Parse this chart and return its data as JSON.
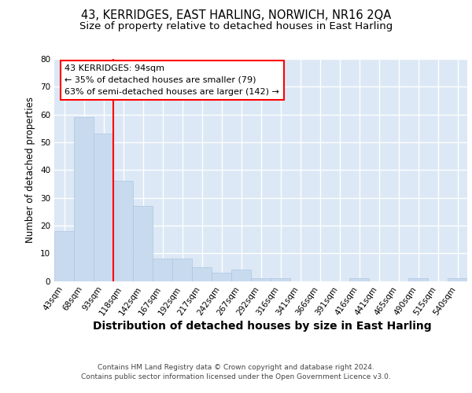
{
  "title": "43, KERRIDGES, EAST HARLING, NORWICH, NR16 2QA",
  "subtitle": "Size of property relative to detached houses in East Harling",
  "xlabel": "Distribution of detached houses by size in East Harling",
  "ylabel": "Number of detached properties",
  "categories": [
    "43sqm",
    "68sqm",
    "93sqm",
    "118sqm",
    "142sqm",
    "167sqm",
    "192sqm",
    "217sqm",
    "242sqm",
    "267sqm",
    "292sqm",
    "316sqm",
    "341sqm",
    "366sqm",
    "391sqm",
    "416sqm",
    "441sqm",
    "465sqm",
    "490sqm",
    "515sqm",
    "540sqm"
  ],
  "values": [
    18,
    59,
    53,
    36,
    27,
    8,
    8,
    5,
    3,
    4,
    1,
    1,
    0,
    0,
    0,
    1,
    0,
    0,
    1,
    0,
    1
  ],
  "bar_color": "#c8daee",
  "bar_edge_color": "#aec6e0",
  "ylim": [
    0,
    80
  ],
  "yticks": [
    0,
    10,
    20,
    30,
    40,
    50,
    60,
    70,
    80
  ],
  "property_bar_index": 2,
  "annotation_text_line1": "43 KERRIDGES: 94sqm",
  "annotation_text_line2": "← 35% of detached houses are smaller (79)",
  "annotation_text_line3": "63% of semi-detached houses are larger (142) →",
  "annotation_box_facecolor": "white",
  "annotation_box_edgecolor": "red",
  "vline_color": "red",
  "footer_line1": "Contains HM Land Registry data © Crown copyright and database right 2024.",
  "footer_line2": "Contains public sector information licensed under the Open Government Licence v3.0.",
  "fig_bg_color": "#ffffff",
  "plot_bg_color": "#dce8f5",
  "grid_color": "#ffffff",
  "title_fontsize": 10.5,
  "subtitle_fontsize": 9.5,
  "xlabel_fontsize": 10,
  "ylabel_fontsize": 8.5,
  "tick_fontsize": 7.5,
  "annotation_fontsize": 8,
  "footer_fontsize": 6.5
}
